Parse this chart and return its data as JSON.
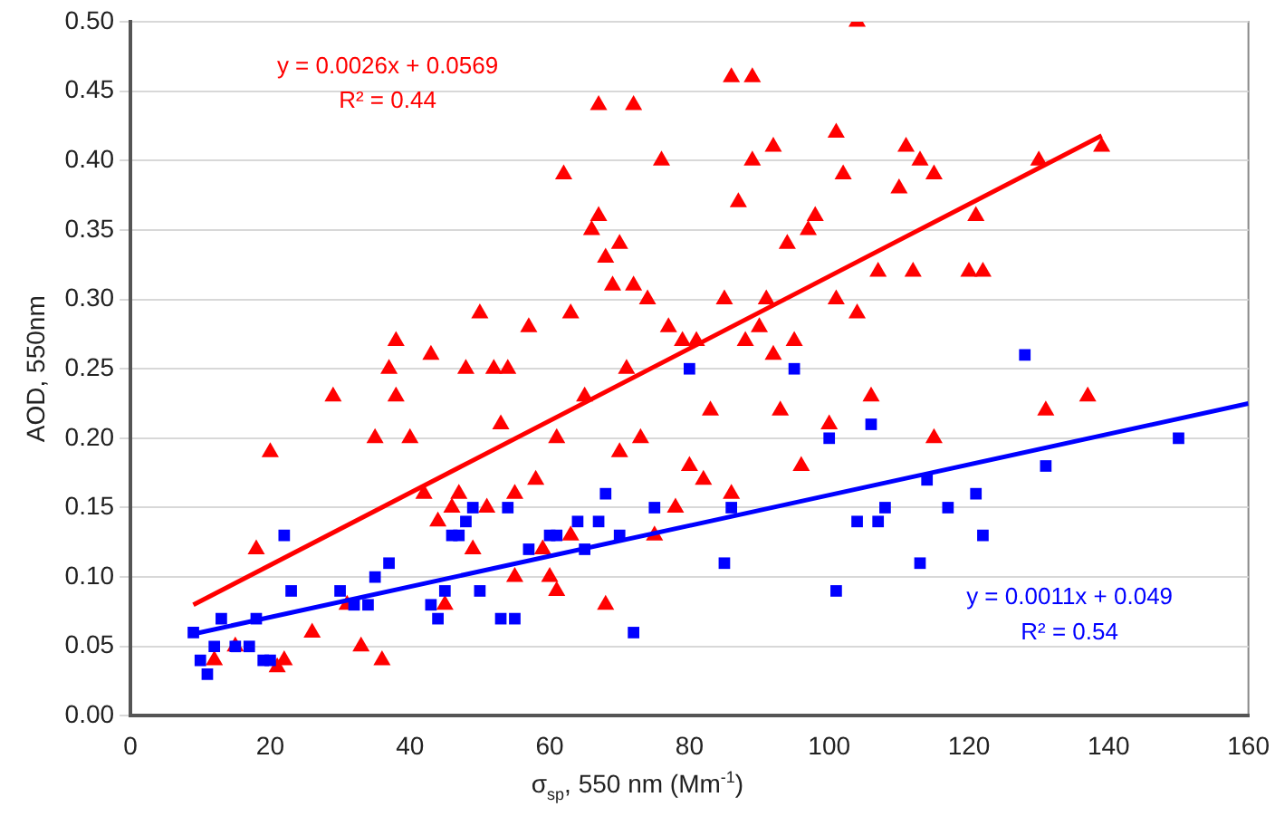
{
  "chart_data": {
    "type": "scatter",
    "xlabel": "σ$_{sp}$, 550 nm (Mm$^{-1}$)",
    "ylabel": "AOD, 550nm",
    "xlim": [
      0,
      160
    ],
    "xticks": [
      0,
      20,
      40,
      60,
      80,
      100,
      120,
      140,
      160
    ],
    "ylim": [
      0,
      0.5
    ],
    "yticks": [
      {
        "value": 0,
        "label": "0.00"
      },
      {
        "value": 0.05,
        "label": "0.05"
      },
      {
        "value": 0.1,
        "label": "0.10"
      },
      {
        "value": 0.15,
        "label": "0.15"
      },
      {
        "value": 0.2,
        "label": "0.20"
      },
      {
        "value": 0.25,
        "label": "0.25"
      },
      {
        "value": 0.3,
        "label": "0.30"
      },
      {
        "value": 0.35,
        "label": "0.35"
      },
      {
        "value": 0.4,
        "label": "0.40"
      },
      {
        "value": 0.45,
        "label": "0.45"
      },
      {
        "value": 0.5,
        "label": "0.50"
      }
    ],
    "grid": "y",
    "legend": false,
    "annotations": [
      "y = 0.0026x + 0.0569",
      "R² = 0.44",
      "y = 0.0011x + 0.049",
      "R² = 0.54"
    ],
    "series": [
      {
        "marker": "triangle",
        "color": "#ff0000",
        "x": [
          12,
          15,
          20,
          18,
          22,
          21,
          26,
          29,
          31,
          33,
          35,
          36,
          37,
          38,
          38,
          40,
          42,
          43,
          44,
          45,
          46,
          47,
          48,
          49,
          50,
          51,
          52,
          53,
          54,
          55,
          55,
          57,
          58,
          59,
          60,
          61,
          61,
          62,
          63,
          63,
          65,
          66,
          67,
          67,
          68,
          68,
          69,
          70,
          70,
          71,
          72,
          72,
          73,
          74,
          75,
          76,
          77,
          78,
          79,
          80,
          81,
          82,
          83,
          85,
          86,
          86,
          87,
          88,
          89,
          89,
          90,
          91,
          92,
          92,
          93,
          94,
          95,
          96,
          97,
          98,
          100,
          101,
          101,
          102,
          104,
          104,
          106,
          107,
          110,
          111,
          112,
          113,
          115,
          115,
          120,
          121,
          122,
          130,
          131,
          137,
          139
        ],
        "values": [
          0.04,
          0.05,
          0.19,
          0.12,
          0.04,
          0.035,
          0.06,
          0.23,
          0.08,
          0.05,
          0.2,
          0.04,
          0.25,
          0.23,
          0.27,
          0.2,
          0.16,
          0.26,
          0.14,
          0.08,
          0.15,
          0.16,
          0.25,
          0.12,
          0.29,
          0.15,
          0.25,
          0.21,
          0.25,
          0.16,
          0.1,
          0.28,
          0.17,
          0.12,
          0.1,
          0.09,
          0.2,
          0.39,
          0.13,
          0.29,
          0.23,
          0.35,
          0.44,
          0.36,
          0.33,
          0.08,
          0.31,
          0.34,
          0.19,
          0.25,
          0.44,
          0.31,
          0.2,
          0.3,
          0.13,
          0.4,
          0.28,
          0.15,
          0.27,
          0.18,
          0.27,
          0.17,
          0.22,
          0.3,
          0.46,
          0.16,
          0.37,
          0.27,
          0.4,
          0.46,
          0.28,
          0.3,
          0.26,
          0.41,
          0.22,
          0.34,
          0.27,
          0.18,
          0.35,
          0.36,
          0.21,
          0.42,
          0.3,
          0.39,
          0.5,
          0.29,
          0.23,
          0.32,
          0.38,
          0.41,
          0.32,
          0.4,
          0.2,
          0.39,
          0.32,
          0.36,
          0.32,
          0.4,
          0.22,
          0.23,
          0.41
        ]
      },
      {
        "marker": "square",
        "color": "#0000ff",
        "x": [
          9,
          10,
          11,
          12,
          13,
          15,
          17,
          18,
          19,
          20,
          22,
          23,
          30,
          32,
          34,
          35,
          37,
          43,
          44,
          45,
          46,
          47,
          48,
          49,
          50,
          53,
          54,
          55,
          57,
          60,
          61,
          64,
          65,
          67,
          68,
          70,
          72,
          75,
          80,
          85,
          86,
          95,
          100,
          101,
          104,
          106,
          107,
          108,
          113,
          114,
          117,
          121,
          122,
          128,
          131,
          150
        ],
        "values": [
          0.06,
          0.04,
          0.03,
          0.05,
          0.07,
          0.05,
          0.05,
          0.07,
          0.04,
          0.04,
          0.13,
          0.09,
          0.09,
          0.08,
          0.08,
          0.1,
          0.11,
          0.08,
          0.07,
          0.09,
          0.13,
          0.13,
          0.14,
          0.15,
          0.09,
          0.07,
          0.15,
          0.07,
          0.12,
          0.13,
          0.13,
          0.14,
          0.12,
          0.14,
          0.16,
          0.13,
          0.06,
          0.15,
          0.25,
          0.11,
          0.15,
          0.25,
          0.2,
          0.09,
          0.14,
          0.21,
          0.14,
          0.15,
          0.11,
          0.17,
          0.15,
          0.16,
          0.13,
          0.26,
          0.18,
          0.2
        ]
      },
      {
        "type": "line",
        "marker": "none",
        "color": "#ff0000",
        "x": [
          9,
          139
        ],
        "values": [
          0.08,
          0.418
        ]
      },
      {
        "type": "line",
        "marker": "none",
        "color": "#0000ff",
        "x": [
          9,
          160
        ],
        "values": [
          0.059,
          0.225
        ]
      }
    ]
  }
}
